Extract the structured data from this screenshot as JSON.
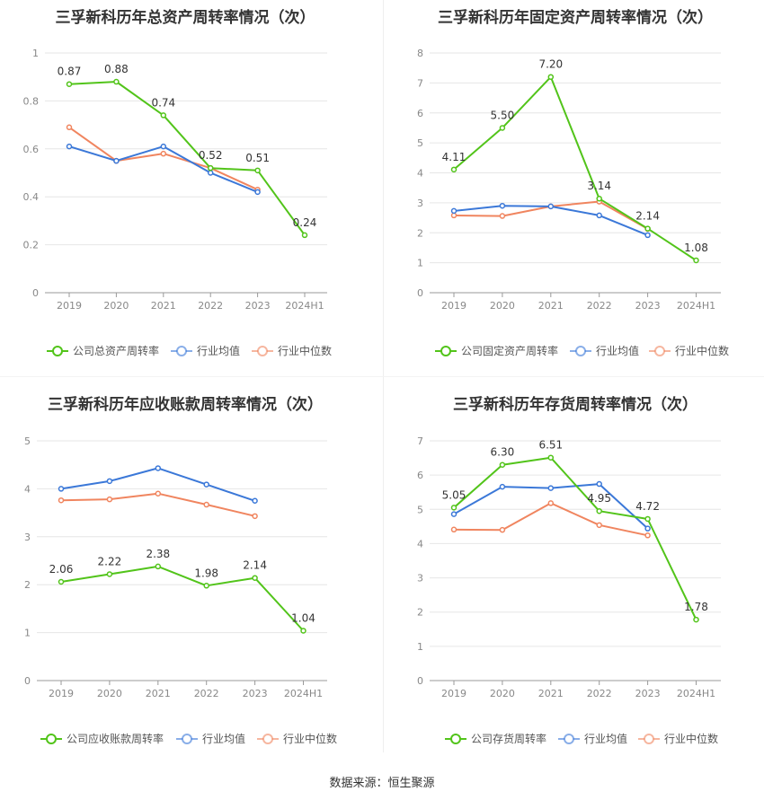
{
  "source": "数据来源：恒生聚源",
  "colors": {
    "company": "#52c41a",
    "avg": "#3b78d8",
    "median": "#f0855f",
    "grid": "#e6e6e6",
    "axis": "#888888",
    "text": "#333333"
  },
  "chart_data": [
    {
      "type": "line",
      "title": "三孚新科历年总资产周转率情况（次）",
      "categories": [
        "2019",
        "2020",
        "2021",
        "2022",
        "2023",
        "2024H1"
      ],
      "ylim": [
        0,
        1
      ],
      "yticks": [
        "0",
        "0.2",
        "0.4",
        "0.6",
        "0.8",
        "1"
      ],
      "tick_values": [
        0,
        0.2,
        0.4,
        0.6,
        0.8,
        1
      ],
      "series": [
        {
          "name": "公司总资产周转率",
          "values": [
            0.87,
            0.88,
            0.74,
            0.52,
            0.51,
            0.24
          ],
          "labels": [
            "0.87",
            "0.88",
            "0.74",
            "0.52",
            "0.51",
            "0.24"
          ]
        },
        {
          "name": "行业均值",
          "values": [
            0.61,
            0.55,
            0.61,
            0.5,
            0.42,
            null
          ]
        },
        {
          "name": "行业中位数",
          "values": [
            0.69,
            0.55,
            0.58,
            0.52,
            0.43,
            null
          ]
        }
      ]
    },
    {
      "type": "line",
      "title": "三孚新科历年固定资产周转率情况（次）",
      "categories": [
        "2019",
        "2020",
        "2021",
        "2022",
        "2023",
        "2024H1"
      ],
      "ylim": [
        0,
        8
      ],
      "yticks": [
        "0",
        "1",
        "2",
        "3",
        "4",
        "5",
        "6",
        "7",
        "8"
      ],
      "tick_values": [
        0,
        1,
        2,
        3,
        4,
        5,
        6,
        7,
        8
      ],
      "series": [
        {
          "name": "公司固定资产周转率",
          "values": [
            4.11,
            5.5,
            7.2,
            3.14,
            2.14,
            1.08
          ],
          "labels": [
            "4.11",
            "5.50",
            "7.20",
            "3.14",
            "2.14",
            "1.08"
          ]
        },
        {
          "name": "行业均值",
          "values": [
            2.73,
            2.9,
            2.88,
            2.58,
            1.92,
            null
          ]
        },
        {
          "name": "行业中位数",
          "values": [
            2.58,
            2.56,
            2.88,
            3.04,
            2.13,
            null
          ]
        }
      ]
    },
    {
      "type": "line",
      "title": "三孚新科历年应收账款周转率情况（次）",
      "categories": [
        "2019",
        "2020",
        "2021",
        "2022",
        "2023",
        "2024H1"
      ],
      "ylim": [
        0,
        5
      ],
      "yticks": [
        "0",
        "1",
        "2",
        "3",
        "4",
        "5"
      ],
      "tick_values": [
        0,
        1,
        2,
        3,
        4,
        5
      ],
      "series": [
        {
          "name": "公司应收账款周转率",
          "values": [
            2.06,
            2.22,
            2.38,
            1.98,
            2.14,
            1.04
          ],
          "labels": [
            "2.06",
            "2.22",
            "2.38",
            "1.98",
            "2.14",
            "1.04"
          ]
        },
        {
          "name": "行业均值",
          "values": [
            4.0,
            4.16,
            4.43,
            4.09,
            3.75,
            null
          ]
        },
        {
          "name": "行业中位数",
          "values": [
            3.76,
            3.78,
            3.9,
            3.67,
            3.43,
            null
          ]
        }
      ]
    },
    {
      "type": "line",
      "title": "三孚新科历年存货周转率情况（次）",
      "categories": [
        "2019",
        "2020",
        "2021",
        "2022",
        "2023",
        "2024H1"
      ],
      "ylim": [
        0,
        7
      ],
      "yticks": [
        "0",
        "1",
        "2",
        "3",
        "4",
        "5",
        "6",
        "7"
      ],
      "tick_values": [
        0,
        1,
        2,
        3,
        4,
        5,
        6,
        7
      ],
      "series": [
        {
          "name": "公司存货周转率",
          "values": [
            5.05,
            6.3,
            6.51,
            4.95,
            4.72,
            1.78
          ],
          "labels": [
            "5.05",
            "6.30",
            "6.51",
            "4.95",
            "4.72",
            "1.78"
          ]
        },
        {
          "name": "行业均值",
          "values": [
            4.86,
            5.66,
            5.62,
            5.74,
            4.44,
            null
          ]
        },
        {
          "name": "行业中位数",
          "values": [
            4.41,
            4.4,
            5.18,
            4.54,
            4.24,
            null
          ]
        }
      ]
    }
  ]
}
